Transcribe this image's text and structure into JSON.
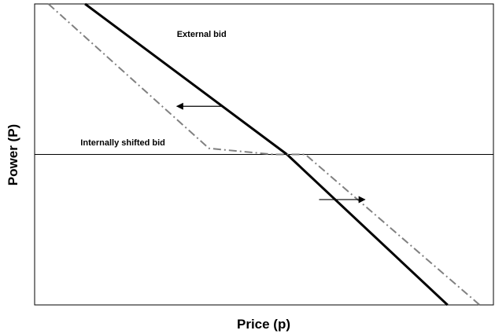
{
  "chart_data": {
    "type": "line",
    "title": "",
    "xlabel": "Price (p)",
    "ylabel": "Power (P)",
    "xlim": [
      0,
      100
    ],
    "ylim": [
      0,
      100
    ],
    "x_ticks": [],
    "y_ticks": [],
    "grid": false,
    "legend": "none",
    "series": [
      {
        "style": "solid",
        "color": "#000000",
        "x": [
          11,
          55,
          90
        ],
        "y": [
          100,
          50,
          0
        ]
      },
      {
        "style": "dash-dot",
        "color": "#808080",
        "x": [
          3,
          38,
          52,
          59,
          97
        ],
        "y": [
          100,
          52,
          50,
          50,
          0
        ]
      }
    ],
    "reference_line": {
      "color": "#000000",
      "y": 50
    },
    "annotations": [
      {
        "text": "External bid",
        "x": 31,
        "y": 89
      },
      {
        "text": "Internally shifted bid",
        "x": 10,
        "y": 53
      }
    ],
    "arrows": [
      {
        "x_from": 41,
        "x_to": 31,
        "y": 66,
        "direction": "left"
      },
      {
        "x_from": 62,
        "x_to": 72,
        "y": 35,
        "direction": "right"
      }
    ]
  }
}
